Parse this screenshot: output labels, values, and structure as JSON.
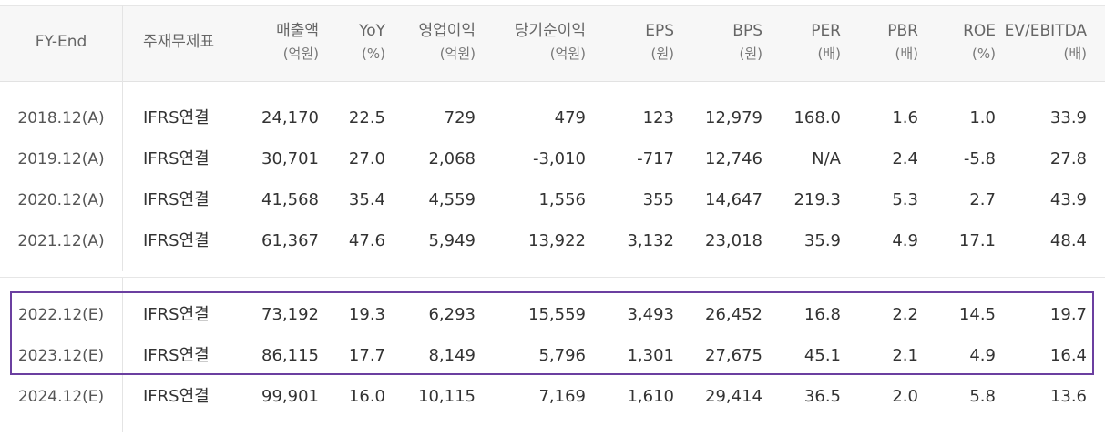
{
  "headers": [
    {
      "label": "FY-End",
      "unit": ""
    },
    {
      "label": "주재무제표",
      "unit": ""
    },
    {
      "label": "매출액",
      "unit": "(억원)"
    },
    {
      "label": "YoY",
      "unit": "(%)"
    },
    {
      "label": "영업이익",
      "unit": "(억원)"
    },
    {
      "label": "당기순이익",
      "unit": "(억원)"
    },
    {
      "label": "EPS",
      "unit": "(원)"
    },
    {
      "label": "BPS",
      "unit": "(원)"
    },
    {
      "label": "PER",
      "unit": "(배)"
    },
    {
      "label": "PBR",
      "unit": "(배)"
    },
    {
      "label": "ROE",
      "unit": "(%)"
    },
    {
      "label": "EV/EBITDA",
      "unit": "(배)"
    }
  ],
  "rows": [
    {
      "year": "2018.12(A)",
      "type": "IFRS연결",
      "sales": "24,170",
      "yoy": "22.5",
      "op": "729",
      "net": "479",
      "eps": "123",
      "bps": "12,979",
      "per": "168.0",
      "pbr": "1.6",
      "roe": "1.0",
      "ev": "33.9"
    },
    {
      "year": "2019.12(A)",
      "type": "IFRS연결",
      "sales": "30,701",
      "yoy": "27.0",
      "op": "2,068",
      "net": "-3,010",
      "eps": "-717",
      "bps": "12,746",
      "per": "N/A",
      "pbr": "2.4",
      "roe": "-5.8",
      "ev": "27.8"
    },
    {
      "year": "2020.12(A)",
      "type": "IFRS연결",
      "sales": "41,568",
      "yoy": "35.4",
      "op": "4,559",
      "net": "1,556",
      "eps": "355",
      "bps": "14,647",
      "per": "219.3",
      "pbr": "5.3",
      "roe": "2.7",
      "ev": "43.9"
    },
    {
      "year": "2021.12(A)",
      "type": "IFRS연결",
      "sales": "61,367",
      "yoy": "47.6",
      "op": "5,949",
      "net": "13,922",
      "eps": "3,132",
      "bps": "23,018",
      "per": "35.9",
      "pbr": "4.9",
      "roe": "17.1",
      "ev": "48.4"
    },
    {
      "year": "2022.12(E)",
      "type": "IFRS연결",
      "sales": "73,192",
      "yoy": "19.3",
      "op": "6,293",
      "net": "15,559",
      "eps": "3,493",
      "bps": "26,452",
      "per": "16.8",
      "pbr": "2.2",
      "roe": "14.5",
      "ev": "19.7"
    },
    {
      "year": "2023.12(E)",
      "type": "IFRS연결",
      "sales": "86,115",
      "yoy": "17.7",
      "op": "8,149",
      "net": "5,796",
      "eps": "1,301",
      "bps": "27,675",
      "per": "45.1",
      "pbr": "2.1",
      "roe": "4.9",
      "ev": "16.4"
    },
    {
      "year": "2024.12(E)",
      "type": "IFRS연결",
      "sales": "99,901",
      "yoy": "16.0",
      "op": "10,115",
      "net": "7,169",
      "eps": "1,610",
      "bps": "29,414",
      "per": "36.5",
      "pbr": "2.0",
      "roe": "5.8",
      "ev": "13.6"
    }
  ],
  "colors": {
    "highlight": "#6b3fa0"
  }
}
